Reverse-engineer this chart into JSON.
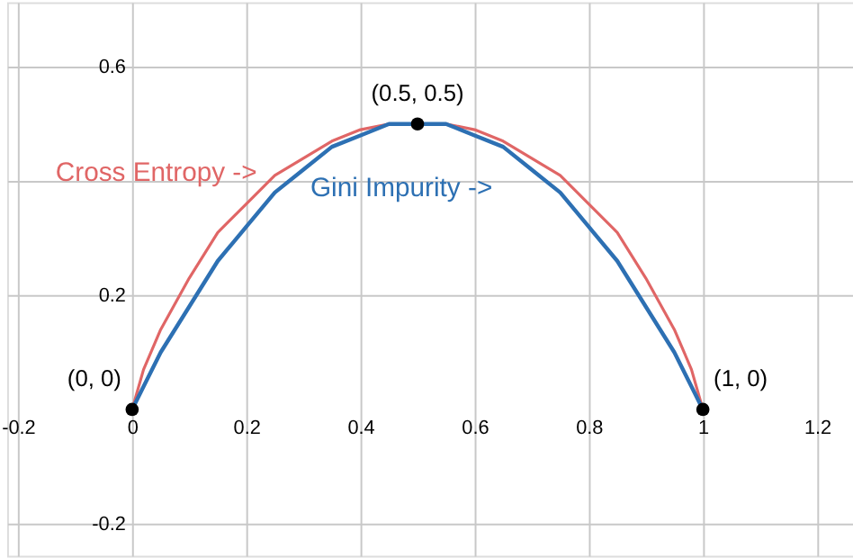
{
  "chart_data": {
    "type": "line",
    "x": [
      0,
      0.02,
      0.05,
      0.1,
      0.15,
      0.2,
      0.25,
      0.3,
      0.35,
      0.4,
      0.45,
      0.5,
      0.55,
      0.6,
      0.65,
      0.7,
      0.75,
      0.8,
      0.85,
      0.9,
      0.95,
      0.98,
      1
    ],
    "series": [
      {
        "name": "Cross Entropy ->",
        "color": "#e06666",
        "values": [
          0,
          0.07,
          0.14,
          0.23,
          0.31,
          0.36,
          0.41,
          0.44,
          0.47,
          0.49,
          0.5,
          0.5,
          0.5,
          0.49,
          0.47,
          0.44,
          0.41,
          0.36,
          0.31,
          0.23,
          0.14,
          0.07,
          0
        ]
      },
      {
        "name": "Gini Impurity ->",
        "color": "#2d70b3",
        "values": [
          0,
          0.04,
          0.1,
          0.18,
          0.26,
          0.32,
          0.38,
          0.42,
          0.46,
          0.48,
          0.5,
          0.5,
          0.5,
          0.48,
          0.46,
          0.42,
          0.38,
          0.32,
          0.26,
          0.18,
          0.1,
          0.04,
          0
        ]
      },
      {
        "type": "scatter",
        "color": "#000000",
        "x": [
          0,
          0.5,
          1
        ],
        "values": [
          0,
          0.5,
          0
        ],
        "marker": "circle"
      }
    ],
    "annotations": [
      {
        "text": "(0, 0)",
        "x": 0,
        "y": 0
      },
      {
        "text": "(0.5, 0.5)",
        "x": 0.5,
        "y": 0.5
      },
      {
        "text": "(1, 0)",
        "x": 1,
        "y": 0
      }
    ],
    "xlim": [
      -0.219,
      1.263
    ],
    "ylim": [
      -0.256,
      0.713
    ],
    "xticks": [
      {
        "value": -0.2,
        "label": "-0.2"
      },
      0,
      0.2,
      0.4,
      0.6,
      0.8,
      1,
      1.2
    ],
    "yticks": [
      -0.2,
      0.2,
      {
        "value": 0.4,
        "label": null
      },
      0.6
    ],
    "grid": true,
    "line_style": "solid"
  }
}
